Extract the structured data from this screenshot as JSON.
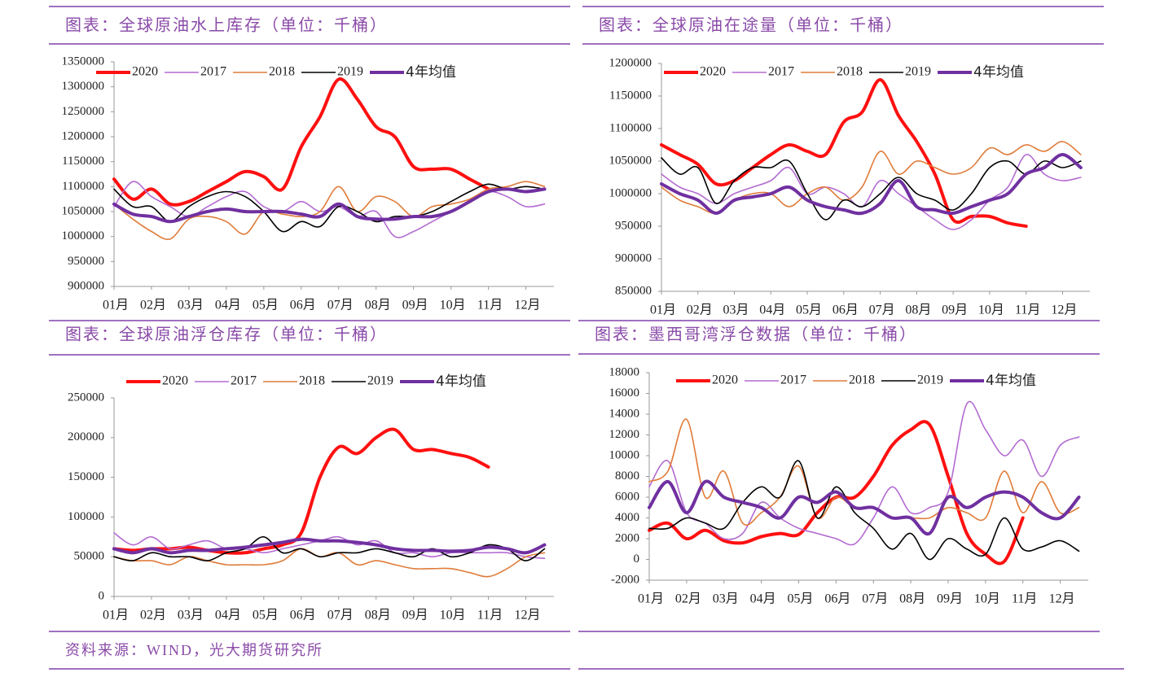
{
  "chart_data": [
    {
      "type": "line",
      "title": "图表：全球原油水上库存（单位：千桶）",
      "x": [
        1,
        1.5,
        2,
        2.5,
        3,
        3.5,
        4,
        4.5,
        5,
        5.5,
        6,
        6.5,
        7,
        7.5,
        8,
        8.5,
        9,
        9.5,
        10,
        10.5,
        11,
        11.5,
        12,
        12.5
      ],
      "xlim": [
        1,
        12.75
      ],
      "xticks": [
        {
          "value": 1,
          "label": "01月"
        },
        {
          "value": 2,
          "label": "02月"
        },
        {
          "value": 3,
          "label": "03月"
        },
        {
          "value": 4,
          "label": "04月"
        },
        {
          "value": 5,
          "label": "05月"
        },
        {
          "value": 6,
          "label": "06月"
        },
        {
          "value": 7,
          "label": "07月"
        },
        {
          "value": 8,
          "label": "08月"
        },
        {
          "value": 9,
          "label": "09月"
        },
        {
          "value": 10,
          "label": "10月"
        },
        {
          "value": 11,
          "label": "11月"
        },
        {
          "value": 12,
          "label": "12月"
        }
      ],
      "ylim": [
        900000,
        1350000
      ],
      "yticks": [
        900000,
        950000,
        1000000,
        1050000,
        1100000,
        1150000,
        1200000,
        1250000,
        1300000,
        1350000
      ],
      "series": [
        {
          "name": "2020",
          "color": "#ff1010",
          "values": [
            1115000,
            1075000,
            1095000,
            1065000,
            1070000,
            1090000,
            1110000,
            1130000,
            1120000,
            1095000,
            1180000,
            1240000,
            1315000,
            1275000,
            1220000,
            1200000,
            1140000,
            1135000,
            1135000,
            1115000,
            1095000,
            null,
            null,
            null
          ]
        },
        {
          "name": "2017",
          "color": "#b36bd1",
          "values": [
            1060000,
            1110000,
            1080000,
            1060000,
            1040000,
            1060000,
            1080000,
            1090000,
            1060000,
            1050000,
            1070000,
            1050000,
            1060000,
            1040000,
            1050000,
            1000000,
            1010000,
            1030000,
            1050000,
            1070000,
            1090000,
            1080000,
            1060000,
            1065000
          ]
        },
        {
          "name": "2018",
          "color": "#e07b39",
          "values": [
            1065000,
            1035000,
            1010000,
            995000,
            1035000,
            1040000,
            1030000,
            1005000,
            1050000,
            1045000,
            1040000,
            1050000,
            1100000,
            1050000,
            1080000,
            1070000,
            1040000,
            1060000,
            1065000,
            1075000,
            1095000,
            1100000,
            1110000,
            1100000
          ]
        },
        {
          "name": "2019",
          "color": "#000000",
          "values": [
            1095000,
            1060000,
            1060000,
            1030000,
            1060000,
            1080000,
            1090000,
            1080000,
            1050000,
            1010000,
            1030000,
            1020000,
            1060000,
            1050000,
            1030000,
            1040000,
            1040000,
            1050000,
            1070000,
            1090000,
            1105000,
            1095000,
            1100000,
            1095000
          ]
        },
        {
          "name": "4年均值",
          "color": "#7030a0",
          "values": [
            1065000,
            1045000,
            1040000,
            1030000,
            1040000,
            1050000,
            1055000,
            1050000,
            1050000,
            1050000,
            1045000,
            1040000,
            1065000,
            1040000,
            1035000,
            1035000,
            1040000,
            1040000,
            1050000,
            1070000,
            1090000,
            1095000,
            1090000,
            1095000
          ]
        }
      ]
    },
    {
      "type": "line",
      "title": "图表：全球原油在途量（单位：千桶）",
      "x": [
        1,
        1.5,
        2,
        2.5,
        3,
        3.5,
        4,
        4.5,
        5,
        5.5,
        6,
        6.5,
        7,
        7.5,
        8,
        8.5,
        9,
        9.5,
        10,
        10.5,
        11,
        11.5,
        12,
        12.5
      ],
      "xlim": [
        1,
        12.75
      ],
      "xticks": [
        {
          "value": 1,
          "label": "01月"
        },
        {
          "value": 2,
          "label": "02月"
        },
        {
          "value": 3,
          "label": "03月"
        },
        {
          "value": 4,
          "label": "04月"
        },
        {
          "value": 5,
          "label": "05月"
        },
        {
          "value": 6,
          "label": "06月"
        },
        {
          "value": 7,
          "label": "07月"
        },
        {
          "value": 8,
          "label": "08月"
        },
        {
          "value": 9,
          "label": "09月"
        },
        {
          "value": 10,
          "label": "10月"
        },
        {
          "value": 11,
          "label": "11月"
        },
        {
          "value": 12,
          "label": "12月"
        }
      ],
      "ylim": [
        850000,
        1200000
      ],
      "yticks": [
        850000,
        900000,
        950000,
        1000000,
        1050000,
        1100000,
        1150000,
        1200000
      ],
      "series": [
        {
          "name": "2020",
          "color": "#ff1010",
          "values": [
            1075000,
            1060000,
            1045000,
            1015000,
            1020000,
            1040000,
            1060000,
            1075000,
            1065000,
            1060000,
            1110000,
            1125000,
            1175000,
            1120000,
            1080000,
            1030000,
            960000,
            965000,
            965000,
            955000,
            950000,
            null,
            null,
            null
          ]
        },
        {
          "name": "2017",
          "color": "#b36bd1",
          "values": [
            1030000,
            1010000,
            1000000,
            985000,
            1000000,
            1010000,
            1020000,
            1040000,
            1000000,
            1010000,
            1000000,
            980000,
            1020000,
            1000000,
            980000,
            960000,
            945000,
            960000,
            990000,
            1010000,
            1060000,
            1030000,
            1020000,
            1025000
          ]
        },
        {
          "name": "2018",
          "color": "#e07b39",
          "values": [
            1010000,
            990000,
            980000,
            970000,
            990000,
            1000000,
            1000000,
            980000,
            1000000,
            1010000,
            990000,
            1010000,
            1065000,
            1030000,
            1050000,
            1040000,
            1030000,
            1040000,
            1070000,
            1060000,
            1075000,
            1065000,
            1080000,
            1060000
          ]
        },
        {
          "name": "2019",
          "color": "#000000",
          "values": [
            1055000,
            1030000,
            1040000,
            985000,
            1020000,
            1040000,
            1040000,
            1050000,
            1000000,
            960000,
            990000,
            980000,
            1000000,
            1025000,
            1000000,
            990000,
            975000,
            1000000,
            1040000,
            1050000,
            1030000,
            1050000,
            1040000,
            1050000
          ]
        },
        {
          "name": "4年均值",
          "color": "#7030a0",
          "values": [
            1015000,
            1000000,
            990000,
            970000,
            990000,
            995000,
            1000000,
            1010000,
            990000,
            980000,
            975000,
            970000,
            985000,
            1020000,
            980000,
            975000,
            970000,
            980000,
            990000,
            1000000,
            1030000,
            1040000,
            1060000,
            1040000
          ]
        }
      ]
    },
    {
      "type": "line",
      "title": "图表：全球原油浮仓库存（单位：千桶）",
      "x": [
        1,
        1.5,
        2,
        2.5,
        3,
        3.5,
        4,
        4.5,
        5,
        5.5,
        6,
        6.5,
        7,
        7.5,
        8,
        8.5,
        9,
        9.5,
        10,
        10.5,
        11,
        11.5,
        12,
        12.5
      ],
      "xlim": [
        1,
        12.75
      ],
      "xticks": [
        {
          "value": 1,
          "label": "01月"
        },
        {
          "value": 2,
          "label": "02月"
        },
        {
          "value": 3,
          "label": "03月"
        },
        {
          "value": 4,
          "label": "04月"
        },
        {
          "value": 5,
          "label": "05月"
        },
        {
          "value": 6,
          "label": "06月"
        },
        {
          "value": 7,
          "label": "07月"
        },
        {
          "value": 8,
          "label": "08月"
        },
        {
          "value": 9,
          "label": "09月"
        },
        {
          "value": 10,
          "label": "10月"
        },
        {
          "value": 11,
          "label": "11月"
        },
        {
          "value": 12,
          "label": "12月"
        }
      ],
      "ylim": [
        0,
        250000
      ],
      "yticks": [
        0,
        50000,
        100000,
        150000,
        200000,
        250000
      ],
      "series": [
        {
          "name": "2020",
          "color": "#ff1010",
          "values": [
            60000,
            58000,
            60000,
            60000,
            62000,
            58000,
            55000,
            55000,
            60000,
            65000,
            80000,
            150000,
            188000,
            180000,
            200000,
            210000,
            185000,
            185000,
            180000,
            175000,
            163000,
            null,
            null,
            null
          ]
        },
        {
          "name": "2017",
          "color": "#b36bd1",
          "values": [
            80000,
            65000,
            75000,
            60000,
            65000,
            70000,
            60000,
            60000,
            55000,
            60000,
            65000,
            70000,
            75000,
            65000,
            70000,
            55000,
            55000,
            50000,
            55000,
            55000,
            55000,
            55000,
            50000,
            48000
          ]
        },
        {
          "name": "2018",
          "color": "#e07b39",
          "values": [
            50000,
            45000,
            45000,
            40000,
            50000,
            45000,
            40000,
            40000,
            40000,
            45000,
            60000,
            50000,
            55000,
            40000,
            45000,
            40000,
            35000,
            35000,
            35000,
            30000,
            25000,
            35000,
            50000,
            55000
          ]
        },
        {
          "name": "2019",
          "color": "#000000",
          "values": [
            50000,
            45000,
            55000,
            50000,
            50000,
            45000,
            55000,
            60000,
            75000,
            55000,
            60000,
            50000,
            55000,
            55000,
            60000,
            55000,
            50000,
            60000,
            50000,
            55000,
            65000,
            60000,
            45000,
            60000
          ]
        },
        {
          "name": "4年均值",
          "color": "#7030a0",
          "values": [
            60000,
            55000,
            60000,
            55000,
            58000,
            58000,
            60000,
            62000,
            65000,
            68000,
            72000,
            70000,
            70000,
            68000,
            65000,
            60000,
            58000,
            58000,
            57000,
            58000,
            62000,
            60000,
            55000,
            65000
          ]
        }
      ]
    },
    {
      "type": "line",
      "title": "图表：墨西哥湾浮仓数据（单位：千桶）",
      "x": [
        1,
        1.5,
        2,
        2.5,
        3,
        3.5,
        4,
        4.5,
        5,
        5.5,
        6,
        6.5,
        7,
        7.5,
        8,
        8.5,
        9,
        9.5,
        10,
        10.5,
        11,
        11.5,
        12,
        12.5
      ],
      "xlim": [
        1,
        12.75
      ],
      "xticks": [
        {
          "value": 1,
          "label": "01月"
        },
        {
          "value": 2,
          "label": "02月"
        },
        {
          "value": 3,
          "label": "03月"
        },
        {
          "value": 4,
          "label": "04月"
        },
        {
          "value": 5,
          "label": "05月"
        },
        {
          "value": 6,
          "label": "06月"
        },
        {
          "value": 7,
          "label": "07月"
        },
        {
          "value": 8,
          "label": "08月"
        },
        {
          "value": 9,
          "label": "09月"
        },
        {
          "value": 10,
          "label": "10月"
        },
        {
          "value": 11,
          "label": "11月"
        },
        {
          "value": 12,
          "label": "12月"
        }
      ],
      "ylim": [
        -2000,
        18000
      ],
      "yticks": [
        -2000,
        0,
        2000,
        4000,
        6000,
        8000,
        10000,
        12000,
        14000,
        16000,
        18000
      ],
      "series": [
        {
          "name": "2020",
          "color": "#ff1010",
          "values": [
            2800,
            3500,
            2000,
            2800,
            1800,
            1600,
            2200,
            2500,
            2400,
            4500,
            6000,
            6000,
            8000,
            11000,
            12500,
            13000,
            8000,
            2500,
            500,
            -200,
            4000,
            null,
            null,
            null
          ]
        },
        {
          "name": "2017",
          "color": "#b36bd1",
          "values": [
            7000,
            9500,
            4500,
            3500,
            2000,
            2500,
            5500,
            4000,
            3000,
            2500,
            2000,
            1500,
            4000,
            7000,
            4500,
            5000,
            6500,
            15000,
            12500,
            10000,
            11500,
            8000,
            11000,
            11800
          ]
        },
        {
          "name": "2018",
          "color": "#e07b39",
          "values": [
            7500,
            8500,
            13500,
            6000,
            8500,
            3500,
            4500,
            6000,
            9000,
            4000,
            6000,
            5000,
            5000,
            4000,
            4000,
            4000,
            5000,
            4500,
            4000,
            8500,
            4500,
            7500,
            4500,
            5000
          ]
        },
        {
          "name": "2019",
          "color": "#000000",
          "values": [
            3000,
            3000,
            4000,
            3500,
            3000,
            5500,
            7000,
            6000,
            9500,
            4000,
            7000,
            4500,
            3000,
            1000,
            2500,
            0,
            2000,
            1000,
            500,
            4000,
            1000,
            1200,
            1800,
            800
          ]
        },
        {
          "name": "4年均值",
          "color": "#7030a0",
          "values": [
            5000,
            7500,
            4500,
            7500,
            6000,
            5500,
            5000,
            4000,
            6000,
            5500,
            6500,
            5000,
            5000,
            4000,
            4000,
            2500,
            6000,
            5000,
            6000,
            6500,
            6000,
            4500,
            4000,
            6000
          ]
        }
      ]
    }
  ],
  "source": "资料来源：WIND，光大期货研究所"
}
